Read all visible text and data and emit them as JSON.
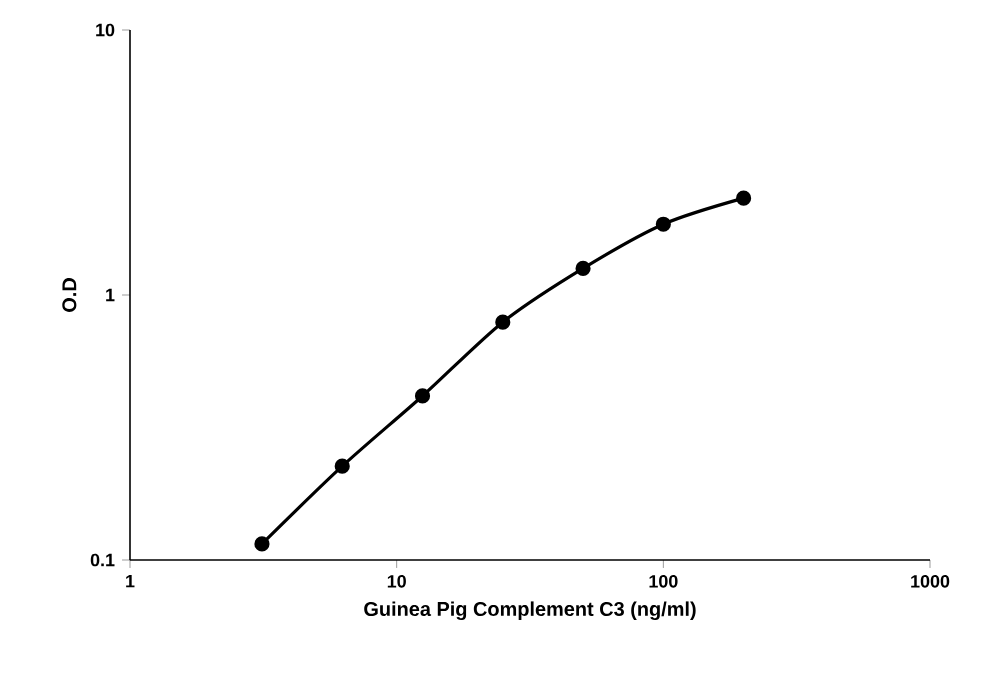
{
  "chart_data": {
    "type": "line",
    "xlabel": "Guinea Pig Complement C3 (ng/ml)",
    "ylabel": "O.D",
    "log": "xy",
    "x": [
      3.125,
      6.25,
      12.5,
      25,
      50,
      100,
      200
    ],
    "series": [
      {
        "color": "#000000",
        "values": [
          0.115,
          0.226,
          0.416,
          0.79,
          1.26,
          1.85,
          2.32
        ]
      }
    ],
    "xlim": [
      1,
      1000
    ],
    "ylim": [
      0.1,
      10
    ],
    "xticks": [
      1,
      10,
      100,
      1000
    ],
    "yticks": [
      0.1,
      1,
      10
    ],
    "marker": "circle",
    "line_style": "solid"
  }
}
